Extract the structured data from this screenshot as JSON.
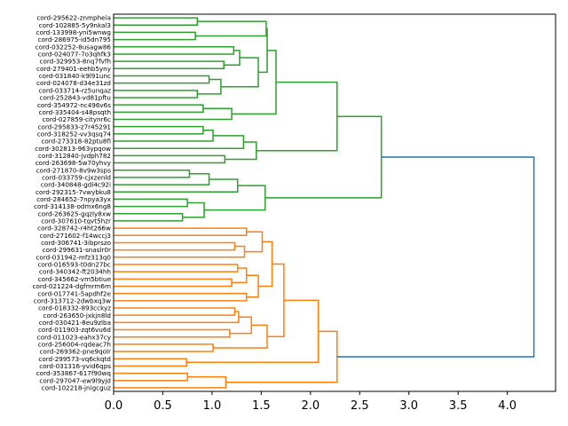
{
  "chart_data": {
    "type": "dendrogram",
    "orientation": "left",
    "title": "",
    "xlabel": "",
    "ylabel": "",
    "xlim": [
      0,
      4.49
    ],
    "xticks": [
      "0.0",
      "0.5",
      "1.0",
      "1.5",
      "2.0",
      "2.5",
      "3.0",
      "3.5",
      "4.0"
    ],
    "colors": {
      "cluster_1": "#2ca02c",
      "cluster_2": "#ff7f0e",
      "above_threshold": "#1f77b4"
    },
    "leaves": [
      "cord-295622-znmpheia",
      "cord-102885-5y9nkal3",
      "cord-133998-yni5wnwg",
      "cord-286975-id5dn795",
      "cord-032252-8usagw86",
      "cord-024077-7o3qhfk3",
      "cord-329953-8nq7fvfh",
      "cord-279401-eehb5yny",
      "cord-031840-k9l91unc",
      "cord-024078-d34e31zd",
      "cord-033714-rz5unqaz",
      "cord-252843-vd81pftu",
      "cord-354972-nc496v6s",
      "cord-335404-s48psqth",
      "cord-027859-citynr6c",
      "cord-295833-z7r45291",
      "cord-318252-vv3qsq74",
      "cord-273318-82ptu8fi",
      "cord-302813-963ypqow",
      "cord-312840-jvdph782",
      "cord-263698-5w70yhvy",
      "cord-271870-8v9w3sps",
      "cord-033759-cjxzenld",
      "cord-340848-gdi4c92i",
      "cord-292315-7vwybku8",
      "cord-284652-7npya3yx",
      "cord-314138-odmx6ng8",
      "cord-263625-gqzly8xw",
      "cord-307610-tqvt5hzr",
      "cord-328742-r4ht266w",
      "cord-271602-f14wccj3",
      "cord-306741-3ibprszo",
      "cord-299631-snaslr0r",
      "cord-031942-mfz313q0",
      "cord-016593-t0dn27bc",
      "cord-340342-ft2034hh",
      "cord-345662-vm5btiue",
      "cord-021224-dgfmrm6m",
      "cord-017741-5apdhf2e",
      "cord-313712-2dwbxq3w",
      "cord-018332-893cckyz",
      "cord-263650-jxkjn8ld",
      "cord-030421-8eu9zlba",
      "cord-011903-zqt6vu6d",
      "cord-011023-eahx37cy",
      "cord-256004-rqdeac7h",
      "cord-269362-pne9qolr",
      "cord-299573-vq6ckqtd",
      "cord-031316-yvid6qps",
      "cord-353867-617f90wq",
      "cord-297047-ew9l9yjd",
      "cord-102218-jnigcguz"
    ],
    "merges": [
      {
        "id": "a1",
        "left": 0,
        "right": 1,
        "height": 0.85,
        "color": "cluster_1"
      },
      {
        "id": "a2",
        "left": 2,
        "right": 3,
        "height": 0.83,
        "color": "cluster_1"
      },
      {
        "id": "a3",
        "left": "a1",
        "right": "a2",
        "height": 1.55,
        "color": "cluster_1"
      },
      {
        "id": "a4",
        "left": 4,
        "right": 5,
        "height": 1.22,
        "color": "cluster_1"
      },
      {
        "id": "a5",
        "left": 6,
        "right": 7,
        "height": 1.12,
        "color": "cluster_1"
      },
      {
        "id": "a6",
        "left": "a4",
        "right": "a5",
        "height": 1.28,
        "color": "cluster_1"
      },
      {
        "id": "a7",
        "left": 8,
        "right": 9,
        "height": 0.97,
        "color": "cluster_1"
      },
      {
        "id": "a8",
        "left": 10,
        "right": 11,
        "height": 0.85,
        "color": "cluster_1"
      },
      {
        "id": "a9",
        "left": "a7",
        "right": "a8",
        "height": 1.09,
        "color": "cluster_1"
      },
      {
        "id": "a10",
        "left": "a6",
        "right": "a9",
        "height": 1.47,
        "color": "cluster_1"
      },
      {
        "id": "a11",
        "left": "a3",
        "right": "a10",
        "height": 1.56,
        "color": "cluster_1"
      },
      {
        "id": "a12",
        "left": 12,
        "right": 13,
        "height": 0.91,
        "color": "cluster_1"
      },
      {
        "id": "a13",
        "left": "a12",
        "right": 14,
        "height": 1.2,
        "color": "cluster_1"
      },
      {
        "id": "a14",
        "left": "a11",
        "right": "a13",
        "height": 1.65,
        "color": "cluster_1"
      },
      {
        "id": "a15",
        "left": 15,
        "right": 16,
        "height": 0.91,
        "color": "cluster_1"
      },
      {
        "id": "a16",
        "left": "a15",
        "right": 17,
        "height": 1.01,
        "color": "cluster_1"
      },
      {
        "id": "a17",
        "left": "a16",
        "right": 18,
        "height": 1.32,
        "color": "cluster_1"
      },
      {
        "id": "a18",
        "left": 19,
        "right": 20,
        "height": 1.13,
        "color": "cluster_1"
      },
      {
        "id": "a19",
        "left": "a17",
        "right": "a18",
        "height": 1.45,
        "color": "cluster_1"
      },
      {
        "id": "a20",
        "left": "a14",
        "right": "a19",
        "height": 2.27,
        "color": "cluster_1"
      },
      {
        "id": "a21",
        "left": 21,
        "right": 22,
        "height": 0.77,
        "color": "cluster_1"
      },
      {
        "id": "a22",
        "left": "a21",
        "right": 23,
        "height": 0.97,
        "color": "cluster_1"
      },
      {
        "id": "a23",
        "left": "a22",
        "right": 24,
        "height": 1.26,
        "color": "cluster_1"
      },
      {
        "id": "a24",
        "left": 25,
        "right": 26,
        "height": 0.75,
        "color": "cluster_1"
      },
      {
        "id": "a25",
        "left": 27,
        "right": 28,
        "height": 0.7,
        "color": "cluster_1"
      },
      {
        "id": "a26",
        "left": "a24",
        "right": "a25",
        "height": 0.92,
        "color": "cluster_1"
      },
      {
        "id": "a27",
        "left": "a23",
        "right": "a26",
        "height": 1.54,
        "color": "cluster_1"
      },
      {
        "id": "a28",
        "left": "a20",
        "right": "a27",
        "height": 2.72,
        "color": "cluster_1"
      },
      {
        "id": "b1",
        "left": 29,
        "right": 30,
        "height": 1.35,
        "color": "cluster_2"
      },
      {
        "id": "b2",
        "left": 31,
        "right": 32,
        "height": 1.23,
        "color": "cluster_2"
      },
      {
        "id": "b3",
        "left": "b2",
        "right": 33,
        "height": 1.33,
        "color": "cluster_2"
      },
      {
        "id": "b4",
        "left": "b1",
        "right": "b3",
        "height": 1.51,
        "color": "cluster_2"
      },
      {
        "id": "b5",
        "left": 34,
        "right": 35,
        "height": 1.26,
        "color": "cluster_2"
      },
      {
        "id": "b6",
        "left": 36,
        "right": 37,
        "height": 1.2,
        "color": "cluster_2"
      },
      {
        "id": "b7",
        "left": "b5",
        "right": "b6",
        "height": 1.35,
        "color": "cluster_2"
      },
      {
        "id": "b8",
        "left": 38,
        "right": 39,
        "height": 1.35,
        "color": "cluster_2"
      },
      {
        "id": "b9",
        "left": "b7",
        "right": "b8",
        "height": 1.47,
        "color": "cluster_2"
      },
      {
        "id": "b10",
        "left": "b4",
        "right": "b9",
        "height": 1.61,
        "color": "cluster_2"
      },
      {
        "id": "b11",
        "left": 40,
        "right": 41,
        "height": 1.23,
        "color": "cluster_2"
      },
      {
        "id": "b12",
        "left": "b11",
        "right": 42,
        "height": 1.27,
        "color": "cluster_2"
      },
      {
        "id": "b13",
        "left": 43,
        "right": 44,
        "height": 1.18,
        "color": "cluster_2"
      },
      {
        "id": "b14",
        "left": "b12",
        "right": "b13",
        "height": 1.4,
        "color": "cluster_2"
      },
      {
        "id": "b15",
        "left": 45,
        "right": 46,
        "height": 1.01,
        "color": "cluster_2"
      },
      {
        "id": "b16",
        "left": "b14",
        "right": "b15",
        "height": 1.56,
        "color": "cluster_2"
      },
      {
        "id": "b17",
        "left": "b10",
        "right": "b16",
        "height": 1.73,
        "color": "cluster_2"
      },
      {
        "id": "b18",
        "left": 47,
        "right": 48,
        "height": 0.74,
        "color": "cluster_2"
      },
      {
        "id": "b19",
        "left": "b17",
        "right": "b18",
        "height": 2.08,
        "color": "cluster_2"
      },
      {
        "id": "b20",
        "left": 49,
        "right": 50,
        "height": 0.75,
        "color": "cluster_2"
      },
      {
        "id": "b21",
        "left": "b20",
        "right": 51,
        "height": 1.14,
        "color": "cluster_2"
      },
      {
        "id": "b22",
        "left": "b19",
        "right": "b21",
        "height": 2.27,
        "color": "cluster_2"
      },
      {
        "id": "root",
        "left": "a28",
        "right": "b22",
        "height": 4.27,
        "color": "above_threshold"
      }
    ]
  }
}
